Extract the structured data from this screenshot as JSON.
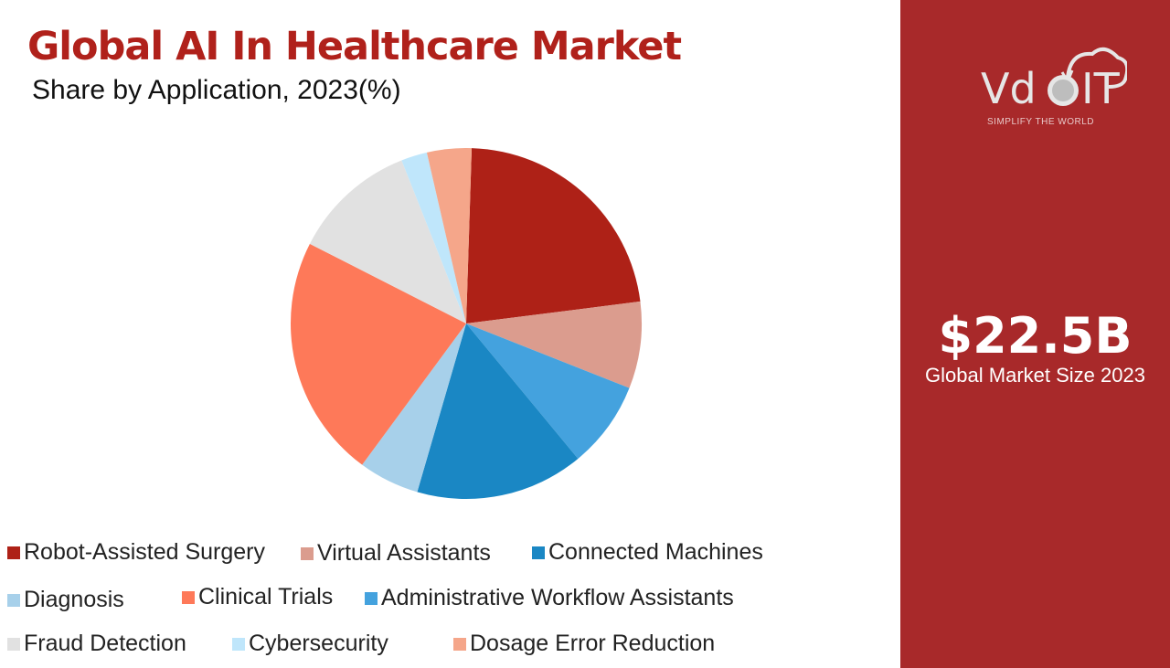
{
  "header": {
    "title": "Global AI In Healthcare Market",
    "subtitle": "Share by Application, 2023(%)"
  },
  "panel": {
    "logo_text": "VDOIT",
    "tagline": "SIMPLIFY THE WORLD",
    "value": "$22.5B",
    "caption": "Global Market Size 2023",
    "background": "#a8292a"
  },
  "chart_data": {
    "type": "pie",
    "title": "Global AI In Healthcare Market",
    "subtitle": "Share by Application, 2023(%)",
    "legend_position": "bottom",
    "categories": [
      "Robot-Assisted Surgery",
      "Virtual Assistants",
      "Administrative Workflow Assistants",
      "Connected Machines",
      "Diagnosis",
      "Clinical Trials",
      "Fraud Detection",
      "Cybersecurity",
      "Dosage Error Reduction"
    ],
    "values": [
      22.5,
      8.0,
      8.0,
      15.5,
      5.6,
      22.4,
      11.5,
      2.4,
      4.1
    ],
    "colors": [
      "#ae2117",
      "#db9c8e",
      "#44a2de",
      "#1a87c4",
      "#a7d0ea",
      "#fe7959",
      "#e1e1e1",
      "#bfe6fb",
      "#f5a68a"
    ]
  }
}
